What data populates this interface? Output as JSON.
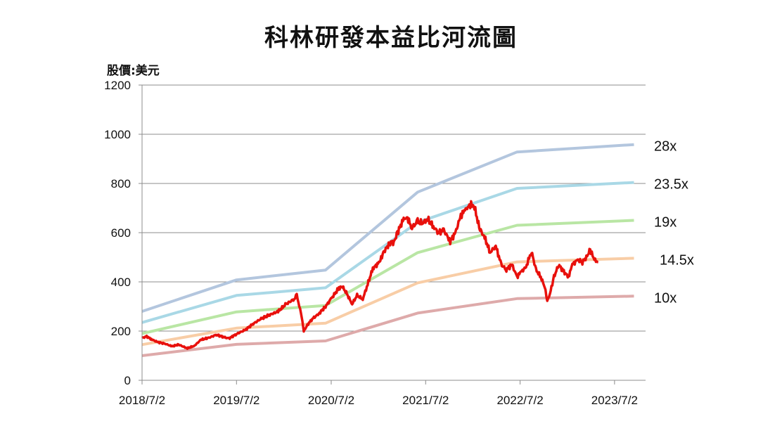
{
  "title": "科林研發本益比河流圖",
  "unit_label": "股價:美元",
  "chart_data": {
    "type": "line",
    "title": "科林研發本益比河流圖",
    "ylabel": "股價:美元",
    "ylim": [
      0,
      1200
    ],
    "yticks": [
      0,
      200,
      400,
      600,
      800,
      1000,
      1200
    ],
    "xticks": [
      "2018/7/2",
      "2019/7/2",
      "2020/7/2",
      "2021/7/2",
      "2022/7/2",
      "2023/7/2"
    ],
    "xlim": [
      "2018/7/2",
      "2023/9/15"
    ],
    "grid": "horizontal",
    "band_colors": {
      "28x": "#b3c6de",
      "23.5x": "#a9d8e6",
      "19x": "#b9e6a4",
      "14.5x": "#f8cda6",
      "10x": "#deaaaa",
      "price": "#e8100c"
    },
    "bands": [
      {
        "name": "28x",
        "points": [
          [
            "2018/7/2",
            280
          ],
          [
            "2019/7/2",
            408
          ],
          [
            "2020/6/10",
            448
          ],
          [
            "2021/6/1",
            765
          ],
          [
            "2022/6/20",
            928
          ],
          [
            "2023/9/15",
            958
          ]
        ]
      },
      {
        "name": "23.5x",
        "points": [
          [
            "2018/7/2",
            235
          ],
          [
            "2019/7/2",
            345
          ],
          [
            "2020/6/10",
            376
          ],
          [
            "2021/6/1",
            642
          ],
          [
            "2022/6/20",
            780
          ],
          [
            "2023/9/15",
            804
          ]
        ]
      },
      {
        "name": "19x",
        "points": [
          [
            "2018/7/2",
            190
          ],
          [
            "2019/7/2",
            278
          ],
          [
            "2020/6/10",
            304
          ],
          [
            "2021/6/1",
            519
          ],
          [
            "2022/6/20",
            630
          ],
          [
            "2023/9/15",
            650
          ]
        ]
      },
      {
        "name": "14.5x",
        "points": [
          [
            "2018/7/2",
            145
          ],
          [
            "2019/7/2",
            212
          ],
          [
            "2020/6/10",
            232
          ],
          [
            "2021/6/1",
            396
          ],
          [
            "2022/6/20",
            481
          ],
          [
            "2023/9/15",
            496
          ]
        ]
      },
      {
        "name": "10x",
        "points": [
          [
            "2018/7/2",
            100
          ],
          [
            "2019/7/2",
            146
          ],
          [
            "2020/6/10",
            160
          ],
          [
            "2021/6/1",
            273
          ],
          [
            "2022/6/20",
            332
          ],
          [
            "2023/9/15",
            342
          ]
        ]
      }
    ],
    "series": [
      {
        "name": "price",
        "points": [
          [
            "2018/7/2",
            172
          ],
          [
            "2018/7/20",
            178
          ],
          [
            "2018/8/10",
            165
          ],
          [
            "2018/9/1",
            155
          ],
          [
            "2018/10/1",
            148
          ],
          [
            "2018/10/25",
            138
          ],
          [
            "2018/11/20",
            145
          ],
          [
            "2018/12/24",
            130
          ],
          [
            "2019/1/20",
            140
          ],
          [
            "2019/2/15",
            165
          ],
          [
            "2019/3/15",
            172
          ],
          [
            "2019/4/15",
            185
          ],
          [
            "2019/5/15",
            175
          ],
          [
            "2019/6/3",
            170
          ],
          [
            "2019/7/2",
            188
          ],
          [
            "2019/8/5",
            205
          ],
          [
            "2019/9/5",
            230
          ],
          [
            "2019/10/5",
            250
          ],
          [
            "2019/11/5",
            265
          ],
          [
            "2019/12/10",
            280
          ],
          [
            "2020/1/10",
            310
          ],
          [
            "2020/2/10",
            330
          ],
          [
            "2020/2/20",
            345
          ],
          [
            "2020/3/10",
            260
          ],
          [
            "2020/3/18",
            200
          ],
          [
            "2020/4/1",
            225
          ],
          [
            "2020/4/20",
            250
          ],
          [
            "2020/5/15",
            270
          ],
          [
            "2020/6/10",
            300
          ],
          [
            "2020/7/1",
            330
          ],
          [
            "2020/8/1",
            375
          ],
          [
            "2020/8/15",
            380
          ],
          [
            "2020/9/1",
            350
          ],
          [
            "2020/9/21",
            310
          ],
          [
            "2020/10/10",
            345
          ],
          [
            "2020/11/1",
            330
          ],
          [
            "2020/11/20",
            390
          ],
          [
            "2020/12/10",
            455
          ],
          [
            "2021/1/5",
            480
          ],
          [
            "2021/1/20",
            520
          ],
          [
            "2021/2/15",
            560
          ],
          [
            "2021/3/1",
            560
          ],
          [
            "2021/3/15",
            600
          ],
          [
            "2021/4/5",
            650
          ],
          [
            "2021/4/20",
            665
          ],
          [
            "2021/5/10",
            620
          ],
          [
            "2021/6/1",
            645
          ],
          [
            "2021/6/20",
            640
          ],
          [
            "2021/7/10",
            655
          ],
          [
            "2021/8/1",
            625
          ],
          [
            "2021/8/20",
            600
          ],
          [
            "2021/9/10",
            610
          ],
          [
            "2021/10/5",
            565
          ],
          [
            "2021/10/25",
            600
          ],
          [
            "2021/11/15",
            670
          ],
          [
            "2021/12/1",
            690
          ],
          [
            "2021/12/15",
            710
          ],
          [
            "2021/12/28",
            715
          ],
          [
            "2022/1/10",
            690
          ],
          [
            "2022/1/25",
            620
          ],
          [
            "2022/2/15",
            580
          ],
          [
            "2022/3/8",
            520
          ],
          [
            "2022/3/30",
            545
          ],
          [
            "2022/4/20",
            470
          ],
          [
            "2022/5/10",
            450
          ],
          [
            "2022/6/1",
            470
          ],
          [
            "2022/6/20",
            420
          ],
          [
            "2022/7/5",
            440
          ],
          [
            "2022/7/25",
            460
          ],
          [
            "2022/8/15",
            525
          ],
          [
            "2022/9/1",
            450
          ],
          [
            "2022/9/20",
            420
          ],
          [
            "2022/10/5",
            380
          ],
          [
            "2022/10/15",
            325
          ],
          [
            "2022/10/25",
            350
          ],
          [
            "2022/11/10",
            420
          ],
          [
            "2022/11/28",
            470
          ],
          [
            "2022/12/15",
            445
          ],
          [
            "2023/1/5",
            420
          ],
          [
            "2023/1/20",
            470
          ],
          [
            "2023/2/10",
            490
          ],
          [
            "2023/2/28",
            480
          ],
          [
            "2023/3/15",
            500
          ],
          [
            "2023/3/30",
            530
          ],
          [
            "2023/4/15",
            490
          ],
          [
            "2023/4/30",
            480
          ]
        ]
      }
    ]
  }
}
